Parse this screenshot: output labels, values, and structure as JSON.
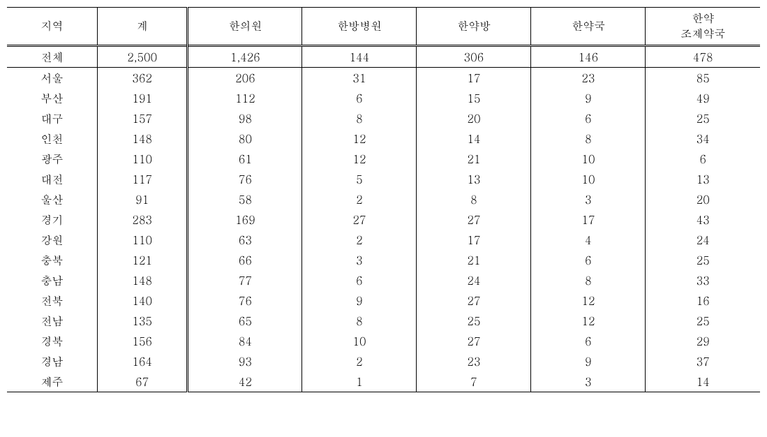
{
  "table": {
    "type": "table",
    "columns": [
      "지역",
      "계",
      "한의원",
      "한방병원",
      "한약방",
      "한약국",
      "한약\n조제약국"
    ],
    "total_row": [
      "전체",
      "2,500",
      "1,426",
      "144",
      "306",
      "146",
      "478"
    ],
    "rows": [
      [
        "서울",
        "362",
        "206",
        "31",
        "17",
        "23",
        "85"
      ],
      [
        "부산",
        "191",
        "112",
        "6",
        "15",
        "9",
        "49"
      ],
      [
        "대구",
        "157",
        "98",
        "8",
        "20",
        "6",
        "25"
      ],
      [
        "인천",
        "148",
        "80",
        "12",
        "14",
        "8",
        "34"
      ],
      [
        "광주",
        "110",
        "61",
        "12",
        "21",
        "10",
        "6"
      ],
      [
        "대전",
        "117",
        "76",
        "5",
        "13",
        "10",
        "13"
      ],
      [
        "울산",
        "91",
        "58",
        "2",
        "8",
        "3",
        "20"
      ],
      [
        "경기",
        "283",
        "169",
        "27",
        "27",
        "17",
        "43"
      ],
      [
        "강원",
        "110",
        "63",
        "2",
        "17",
        "4",
        "24"
      ],
      [
        "충북",
        "121",
        "66",
        "3",
        "21",
        "6",
        "25"
      ],
      [
        "충남",
        "148",
        "77",
        "6",
        "24",
        "8",
        "33"
      ],
      [
        "전북",
        "140",
        "76",
        "9",
        "27",
        "12",
        "16"
      ],
      [
        "전남",
        "135",
        "65",
        "8",
        "25",
        "12",
        "25"
      ],
      [
        "경북",
        "156",
        "84",
        "10",
        "27",
        "6",
        "29"
      ],
      [
        "경남",
        "164",
        "93",
        "2",
        "23",
        "9",
        "37"
      ],
      [
        "제주",
        "67",
        "42",
        "1",
        "7",
        "3",
        "14"
      ]
    ],
    "column_widths": [
      "12%",
      "12%",
      "15.2%",
      "15.2%",
      "15.2%",
      "15.2%",
      "15.2%"
    ],
    "border_color": "#000000",
    "background_color": "#ffffff",
    "text_color": "#000000",
    "font_size": 16,
    "font_family": "Batang, serif",
    "double_line_after_column_index": 1,
    "header_line1": "한약",
    "header_line2": "조제약국"
  }
}
